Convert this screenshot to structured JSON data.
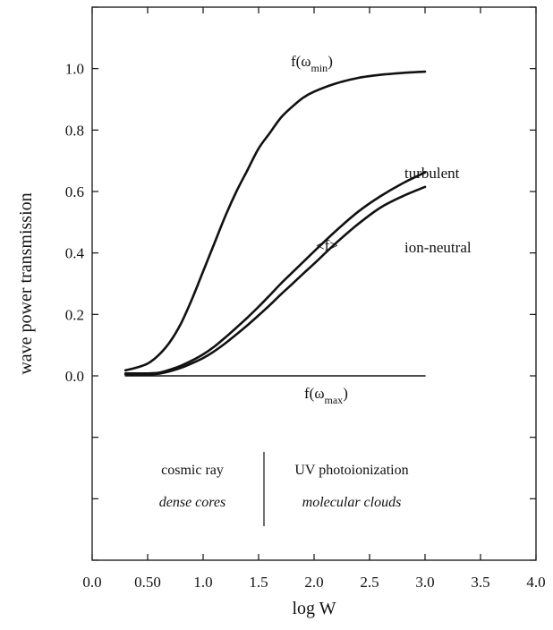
{
  "chart_data": {
    "type": "line",
    "xlabel": "log W",
    "ylabel": "wave power transmission",
    "xlim": [
      0.0,
      4.0
    ],
    "ylim": [
      -0.6,
      1.2
    ],
    "x_ticks": [
      0.0,
      0.5,
      1.0,
      1.5,
      2.0,
      2.5,
      3.0,
      3.5,
      4.0
    ],
    "x_tick_labels": [
      "0.0",
      "0.50",
      "1.0",
      "1.5",
      "2.0",
      "2.5",
      "3.0",
      "3.5",
      "4.0"
    ],
    "y_ticks": [
      0.0,
      0.2,
      0.4,
      0.6,
      0.8,
      1.0
    ],
    "y_tick_labels": [
      "0.0",
      "0.2",
      "0.4",
      "0.6",
      "0.8",
      "1.0"
    ],
    "series": [
      {
        "name": "f(ω_min)",
        "x": [
          0.3,
          0.4,
          0.5,
          0.6,
          0.7,
          0.8,
          0.9,
          1.0,
          1.1,
          1.2,
          1.3,
          1.4,
          1.5,
          1.6,
          1.7,
          1.8,
          1.9,
          2.0,
          2.2,
          2.4,
          2.6,
          2.8,
          3.0
        ],
        "y": [
          0.018,
          0.027,
          0.04,
          0.068,
          0.11,
          0.17,
          0.25,
          0.34,
          0.43,
          0.52,
          0.6,
          0.67,
          0.74,
          0.79,
          0.84,
          0.875,
          0.905,
          0.925,
          0.952,
          0.97,
          0.98,
          0.986,
          0.99
        ]
      },
      {
        "name": "turbulent",
        "x": [
          0.3,
          0.5,
          0.6,
          0.7,
          0.8,
          0.9,
          1.0,
          1.1,
          1.2,
          1.3,
          1.4,
          1.5,
          1.6,
          1.7,
          1.8,
          1.9,
          2.0,
          2.2,
          2.4,
          2.6,
          2.8,
          3.0
        ],
        "y": [
          0.008,
          0.008,
          0.01,
          0.02,
          0.033,
          0.05,
          0.07,
          0.095,
          0.125,
          0.157,
          0.19,
          0.225,
          0.262,
          0.3,
          0.335,
          0.37,
          0.405,
          0.473,
          0.535,
          0.585,
          0.627,
          0.662
        ]
      },
      {
        "name": "ion-neutral",
        "x": [
          0.3,
          0.5,
          0.6,
          0.7,
          0.8,
          0.9,
          1.0,
          1.1,
          1.2,
          1.3,
          1.4,
          1.5,
          1.6,
          1.7,
          1.8,
          1.9,
          2.0,
          2.2,
          2.4,
          2.6,
          2.8,
          3.0
        ],
        "y": [
          0.005,
          0.005,
          0.007,
          0.015,
          0.026,
          0.041,
          0.058,
          0.08,
          0.106,
          0.135,
          0.165,
          0.197,
          0.23,
          0.265,
          0.298,
          0.332,
          0.365,
          0.433,
          0.495,
          0.548,
          0.585,
          0.615
        ]
      },
      {
        "name": "f(ω_max)",
        "x": [
          0.3,
          3.0
        ],
        "y": [
          0.0,
          0.0
        ]
      }
    ],
    "labels": {
      "fmin_main": "f(ω",
      "fmin_sub": "min",
      "fmax_main": "f(ω",
      "fmax_sub": "max",
      "close": ")",
      "turbulent": "turbulent",
      "mean_f": "<f>",
      "ion_neutral": "ion-neutral"
    },
    "regions": {
      "left_top": "cosmic ray",
      "left_bottom": "dense cores",
      "right_top": "UV photoionization",
      "right_bottom": "molecular clouds"
    }
  }
}
